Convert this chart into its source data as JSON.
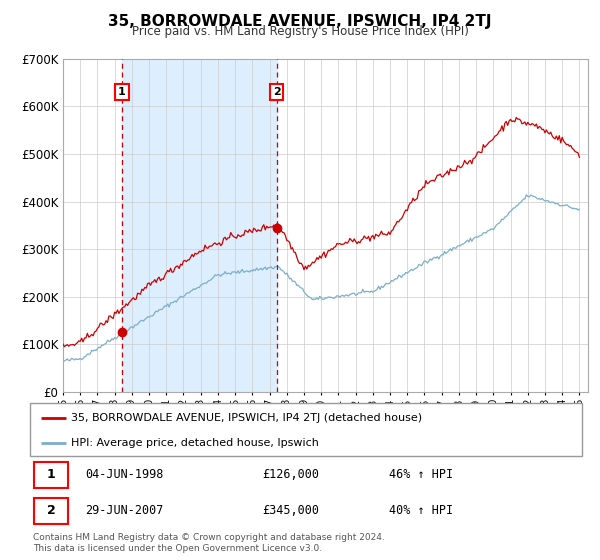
{
  "title": "35, BORROWDALE AVENUE, IPSWICH, IP4 2TJ",
  "subtitle": "Price paid vs. HM Land Registry's House Price Index (HPI)",
  "red_label": "35, BORROWDALE AVENUE, IPSWICH, IP4 2TJ (detached house)",
  "blue_label": "HPI: Average price, detached house, Ipswich",
  "sale1_date": "04-JUN-1998",
  "sale1_price": 126000,
  "sale1_hpi": "46% ↑ HPI",
  "sale2_date": "29-JUN-2007",
  "sale2_price": 345000,
  "sale2_hpi": "40% ↑ HPI",
  "footer": "Contains HM Land Registry data © Crown copyright and database right 2024.\nThis data is licensed under the Open Government Licence v3.0.",
  "ylim": [
    0,
    700000
  ],
  "yticks": [
    0,
    100000,
    200000,
    300000,
    400000,
    500000,
    600000,
    700000
  ],
  "red_color": "#cc0000",
  "blue_color": "#7aafcc",
  "shade_color": "#ddeeff",
  "background_color": "#ffffff",
  "grid_color": "#cccccc",
  "sale1_t": 1998.42,
  "sale2_t": 2007.42
}
